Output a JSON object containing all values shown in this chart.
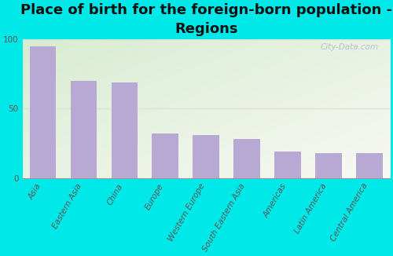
{
  "title": "Place of birth for the foreign-born population -\nRegions",
  "categories": [
    "Asia",
    "Eastern Asia",
    "China",
    "Europe",
    "Western Europe",
    "South Eastern Asia",
    "Americas",
    "Latin America",
    "Central America"
  ],
  "values": [
    95,
    70,
    69,
    32,
    31,
    28,
    19,
    18,
    18
  ],
  "bar_color": "#b8a8d4",
  "ylim": [
    0,
    100
  ],
  "yticks": [
    0,
    50,
    100
  ],
  "background_outer": "#00e8e8",
  "bg_gradient_topleft": "#d8ecd0",
  "bg_gradient_bottomright": "#f8f8f4",
  "grid_color": "#e0e0d8",
  "title_fontsize": 13,
  "tick_fontsize": 7.5,
  "watermark": "City-Data.com",
  "watermark_color": "#aabbcc"
}
